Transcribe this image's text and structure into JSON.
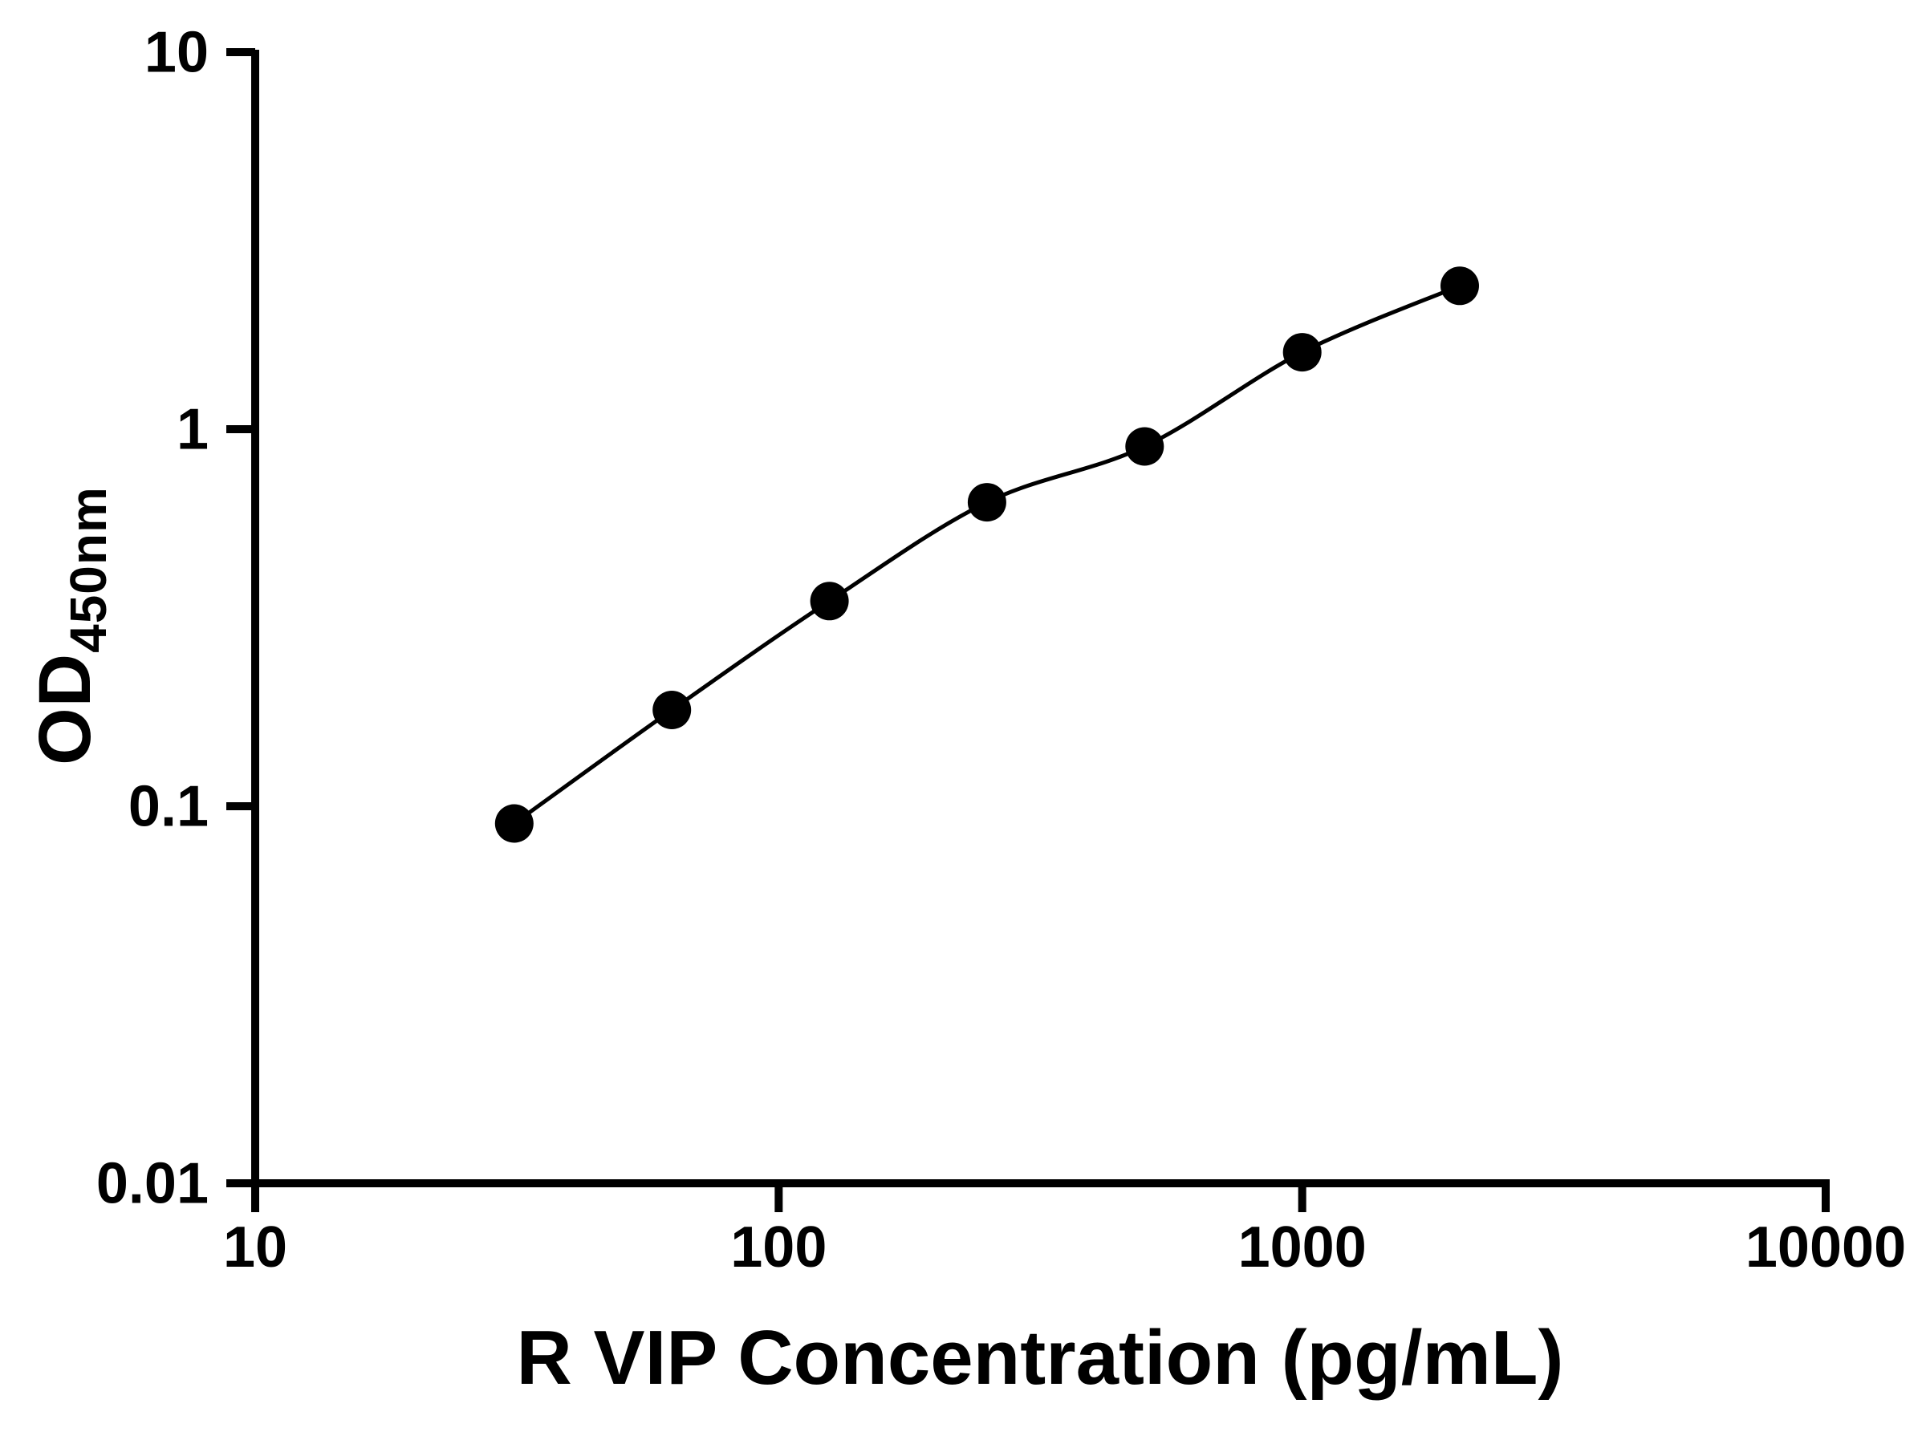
{
  "chart_data": {
    "type": "line",
    "title": "",
    "xlabel": "R VIP Concentration (pg/mL)",
    "ylabel_main": "OD",
    "ylabel_sub": "450nm",
    "x_scale": "log",
    "y_scale": "log",
    "xlim": [
      10,
      10000
    ],
    "ylim": [
      0.01,
      10
    ],
    "x_ticks": [
      10,
      100,
      1000,
      10000
    ],
    "x_tick_labels": [
      "10",
      "100",
      "1000",
      "10000"
    ],
    "y_ticks": [
      10,
      1,
      0.1,
      0.01
    ],
    "y_tick_labels": [
      "10",
      "1",
      "0.1",
      "0.01"
    ],
    "grid": false,
    "legend": "none",
    "series": [
      {
        "x": [
          31.25,
          62.5,
          125,
          250,
          500,
          1000,
          2000
        ],
        "y": [
          0.09,
          0.18,
          0.35,
          0.64,
          0.9,
          1.6,
          2.4
        ]
      }
    ],
    "marker_color": "#000000",
    "line_color": "#000000",
    "axis_color": "#000000",
    "background": "#ffffff"
  }
}
